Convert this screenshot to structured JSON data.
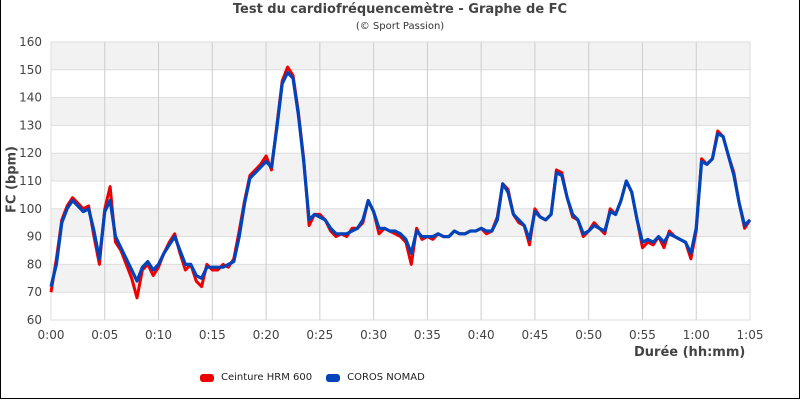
{
  "header": {
    "title": "Test du cardiofréquencemètre - Graphe de FC",
    "subtitle": "(© Sport Passion)"
  },
  "axes": {
    "ylabel": "FC (bpm)",
    "xlabel": "Durée (hh:mm)"
  },
  "legend": [
    {
      "label": "Ceinture HRM 600",
      "color": "#ee0000"
    },
    {
      "label": "COROS NOMAD",
      "color": "#0044bb"
    }
  ],
  "chart_data": {
    "type": "line",
    "title": "Test du cardiofréquencemètre - Graphe de FC",
    "subtitle": "(© Sport Passion)",
    "xlabel": "Durée (hh:mm)",
    "ylabel": "FC (bpm)",
    "ylim": [
      60,
      160
    ],
    "xlim_minutes": [
      0,
      65
    ],
    "y_ticks": [
      60,
      70,
      80,
      90,
      100,
      110,
      120,
      130,
      140,
      150,
      160
    ],
    "x_ticks": [
      "0:00",
      "0:05",
      "0:10",
      "0:15",
      "0:20",
      "0:25",
      "0:30",
      "0:35",
      "0:40",
      "0:45",
      "0:50",
      "0:55",
      "1:00",
      "1:05"
    ],
    "grid": true,
    "alternating_bands": true,
    "legend_position": "bottom",
    "x": [
      0,
      0.5,
      1,
      1.5,
      2,
      2.5,
      3,
      3.5,
      4,
      4.5,
      5,
      5.5,
      6,
      6.5,
      7,
      7.5,
      8,
      8.5,
      9,
      9.5,
      10,
      10.5,
      11,
      11.5,
      12,
      12.5,
      13,
      13.5,
      14,
      14.5,
      15,
      15.5,
      16,
      16.5,
      17,
      17.5,
      18,
      18.5,
      19,
      19.5,
      20,
      20.5,
      21,
      21.5,
      22,
      22.5,
      23,
      23.5,
      24,
      24.5,
      25,
      25.5,
      26,
      26.5,
      27,
      27.5,
      28,
      28.5,
      29,
      29.5,
      30,
      30.5,
      31,
      31.5,
      32,
      32.5,
      33,
      33.5,
      34,
      34.5,
      35,
      35.5,
      36,
      36.5,
      37,
      37.5,
      38,
      38.5,
      39,
      39.5,
      40,
      40.5,
      41,
      41.5,
      42,
      42.5,
      43,
      43.5,
      44,
      44.5,
      45,
      45.5,
      46,
      46.5,
      47,
      47.5,
      48,
      48.5,
      49,
      49.5,
      50,
      50.5,
      51,
      51.5,
      52,
      52.5,
      53,
      53.5,
      54,
      54.5,
      55,
      55.5,
      56,
      56.5,
      57,
      57.5,
      58,
      58.5,
      59,
      59.5,
      60,
      60.5,
      61,
      61.5,
      62,
      62.5,
      63,
      63.5,
      64,
      64.5,
      65
    ],
    "series": [
      {
        "name": "Ceinture HRM 600",
        "color": "#ee0000",
        "values": [
          70,
          82,
          96,
          101,
          104,
          102,
          100,
          101,
          90,
          80,
          100,
          108,
          88,
          85,
          80,
          75,
          68,
          78,
          80,
          76,
          79,
          84,
          88,
          91,
          84,
          78,
          80,
          74,
          72,
          80,
          78,
          78,
          80,
          79,
          82,
          92,
          103,
          112,
          114,
          116,
          119,
          114,
          130,
          146,
          151,
          148,
          135,
          118,
          94,
          98,
          98,
          96,
          92,
          90,
          91,
          90,
          93,
          93,
          95,
          103,
          99,
          91,
          93,
          92,
          91,
          90,
          88,
          80,
          93,
          89,
          90,
          89,
          91,
          90,
          90,
          92,
          91,
          91,
          92,
          92,
          93,
          91,
          92,
          97,
          109,
          107,
          98,
          95,
          94,
          87,
          100,
          97,
          96,
          98,
          114,
          113,
          104,
          97,
          96,
          90,
          92,
          95,
          93,
          91,
          100,
          98,
          103,
          110,
          106,
          96,
          86,
          88,
          87,
          90,
          86,
          92,
          90,
          89,
          88,
          82,
          92,
          118,
          116,
          118,
          128,
          126,
          119,
          113,
          102,
          93,
          96,
          95,
          94,
          97,
          101
        ]
      },
      {
        "name": "COROS NOMAD",
        "color": "#0044bb",
        "values": [
          72,
          80,
          95,
          100,
          103,
          101,
          99,
          100,
          92,
          82,
          99,
          103,
          90,
          86,
          82,
          78,
          74,
          79,
          81,
          78,
          80,
          84,
          87,
          90,
          85,
          80,
          80,
          76,
          75,
          79,
          79,
          79,
          79,
          80,
          81,
          90,
          102,
          111,
          113,
          115,
          117,
          115,
          129,
          145,
          149,
          147,
          134,
          117,
          96,
          98,
          97,
          96,
          93,
          91,
          91,
          91,
          92,
          93,
          96,
          103,
          99,
          93,
          93,
          92,
          92,
          91,
          89,
          84,
          92,
          90,
          90,
          90,
          91,
          90,
          90,
          92,
          91,
          91,
          92,
          92,
          93,
          92,
          92,
          96,
          109,
          106,
          98,
          96,
          94,
          89,
          99,
          97,
          96,
          98,
          113,
          112,
          104,
          98,
          96,
          91,
          92,
          94,
          93,
          92,
          99,
          98,
          103,
          110,
          106,
          96,
          88,
          89,
          88,
          90,
          88,
          91,
          90,
          89,
          88,
          84,
          93,
          117,
          116,
          118,
          127,
          126,
          119,
          112,
          102,
          94,
          96,
          95,
          95,
          97,
          99
        ]
      }
    ]
  }
}
